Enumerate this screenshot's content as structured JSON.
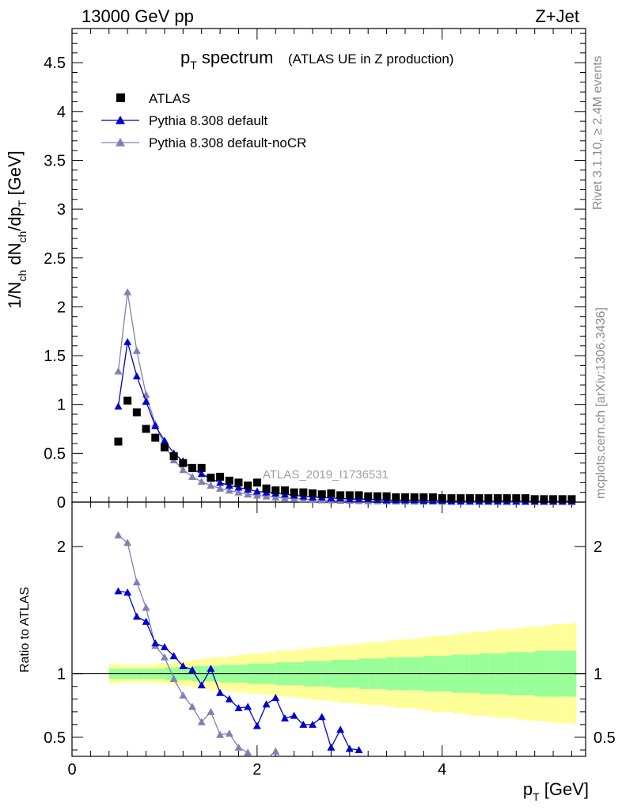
{
  "header": {
    "energy": "13000 GeV pp",
    "process": "Z+Jet"
  },
  "title": {
    "main": "p",
    "main_sub": "T",
    "main_rest": " spectrum",
    "note": "(ATLAS UE in Z production)"
  },
  "side_text": {
    "rivet": "Rivet 3.1.10, ≥ 2.4M events",
    "mcplots": "mcplots.cern.ch [arXiv:1306.3436]"
  },
  "watermark": "ATLAS_2019_I1736531",
  "y_upper_label": "1/N_ch dN_ch/dp_T [GeV]",
  "y_lower_label": "Ratio to ATLAS",
  "x_label": "p_T [GeV]",
  "colors": {
    "data": "#000000",
    "default": "#0000cc",
    "noCR": "#8080b3",
    "band_outer": "#ffff99",
    "band_inner": "#99ff99"
  },
  "chart_data": [
    {
      "type": "scatter",
      "panel": "main",
      "xlim": [
        0,
        5.55
      ],
      "ylim": [
        0,
        4.85
      ],
      "x_ticks": [
        "0",
        "2",
        "4"
      ],
      "y_ticks": [
        "0",
        "0.5",
        "1",
        "1.5",
        "2",
        "2.5",
        "3",
        "3.5",
        "4",
        "4.5"
      ],
      "x": [
        0.5,
        0.6,
        0.7,
        0.8,
        0.9,
        1.0,
        1.1,
        1.2,
        1.3,
        1.4,
        1.5,
        1.6,
        1.7,
        1.8,
        1.9,
        2.0,
        2.1,
        2.2,
        2.3,
        2.4,
        2.5,
        2.6,
        2.7,
        2.8,
        2.9,
        3.0,
        3.1,
        3.2,
        3.3,
        3.4,
        3.5,
        3.6,
        3.7,
        3.8,
        3.9,
        4.0,
        4.1,
        4.2,
        4.3,
        4.4,
        4.5,
        4.6,
        4.7,
        4.8,
        4.9,
        5.0,
        5.1,
        5.2,
        5.3,
        5.4
      ],
      "series": [
        {
          "name": "ATLAS",
          "marker": "square",
          "values": [
            0.62,
            1.04,
            0.92,
            0.75,
            0.66,
            0.56,
            0.47,
            0.4,
            0.35,
            0.35,
            0.25,
            0.26,
            0.22,
            0.2,
            0.17,
            0.2,
            0.14,
            0.12,
            0.12,
            0.1,
            0.1,
            0.09,
            0.08,
            0.09,
            0.07,
            0.07,
            0.07,
            0.06,
            0.06,
            0.06,
            0.05,
            0.05,
            0.05,
            0.05,
            0.05,
            0.04,
            0.04,
            0.04,
            0.04,
            0.04,
            0.04,
            0.04,
            0.04,
            0.04,
            0.04,
            0.03,
            0.03,
            0.03,
            0.03,
            0.03
          ]
        },
        {
          "name": "Pythia 8.308 default",
          "marker": "triangle",
          "values": [
            0.98,
            1.64,
            1.29,
            1.03,
            0.78,
            0.63,
            0.5,
            0.42,
            0.34,
            0.29,
            0.24,
            0.2,
            0.17,
            0.15,
            0.13,
            0.11,
            0.1,
            0.09,
            0.08,
            0.07,
            0.06,
            0.05,
            0.05,
            0.04,
            0.04,
            0.03,
            0.03,
            0.03,
            0.025,
            0.02,
            0.02,
            0.02,
            0.02,
            0.015,
            0.015,
            0.015,
            0.01,
            0.01,
            0.01,
            0.01,
            0.01,
            0.01,
            0.01,
            0.01,
            0.008,
            0.008,
            0.008,
            0.008,
            0.008,
            0.008
          ]
        },
        {
          "name": "Pythia 8.308 default-noCR",
          "marker": "triangle",
          "values": [
            1.34,
            2.15,
            1.55,
            1.1,
            0.8,
            0.58,
            0.43,
            0.33,
            0.26,
            0.21,
            0.17,
            0.14,
            0.12,
            0.1,
            0.08,
            0.07,
            0.06,
            0.05,
            0.04,
            0.035,
            0.03,
            0.025,
            0.02,
            0.02,
            0.015,
            0.015,
            0.012,
            0.01,
            0.01,
            0.01,
            0.008,
            0.008,
            0.007,
            0.006,
            0.006,
            0.005,
            0.005,
            0.005,
            0.004,
            0.004,
            0.004,
            0.004,
            0.003,
            0.003,
            0.003,
            0.003,
            0.003,
            0.003,
            0.003,
            0.003
          ]
        }
      ]
    },
    {
      "type": "line",
      "panel": "ratio",
      "xlim": [
        0,
        5.55
      ],
      "ylim": [
        0.35,
        2.35
      ],
      "x_ticks": [
        "0",
        "2",
        "4"
      ],
      "y_ticks": [
        "0.5",
        "1",
        "2"
      ],
      "x": [
        0.5,
        0.6,
        0.7,
        0.8,
        0.9,
        1.0,
        1.1,
        1.2,
        1.3,
        1.4,
        1.5,
        1.6,
        1.7,
        1.8,
        1.9,
        2.0,
        2.1,
        2.2,
        2.3,
        2.4,
        2.5,
        2.6,
        2.7,
        2.8,
        2.9,
        3.0,
        3.1
      ],
      "series": [
        {
          "name": "Pythia 8.308 default",
          "values": [
            1.65,
            1.64,
            1.45,
            1.41,
            1.24,
            1.21,
            1.14,
            1.06,
            1.03,
            0.91,
            1.04,
            0.85,
            0.8,
            0.73,
            0.74,
            0.59,
            0.76,
            0.81,
            0.65,
            0.67,
            0.6,
            0.6,
            0.66,
            0.42,
            0.56,
            0.41,
            0.4
          ]
        },
        {
          "name": "Pythia 8.308 default-noCR",
          "x": [
            0.5,
            0.6,
            0.7,
            0.8,
            0.9,
            1.0,
            1.1,
            1.2,
            1.3,
            1.4,
            1.5,
            1.6,
            1.7,
            1.8,
            1.9,
            2.0,
            2.1,
            2.2,
            2.3
          ],
          "values": [
            2.09,
            2.03,
            1.72,
            1.52,
            1.22,
            1.13,
            0.96,
            0.83,
            0.74,
            0.62,
            0.7,
            0.52,
            0.53,
            0.42,
            0.38,
            0.31,
            0.33,
            0.39,
            0.3
          ]
        }
      ],
      "band_x": [
        0.45,
        0.55,
        0.65,
        0.75,
        0.85,
        0.95,
        1.05,
        1.15,
        1.25,
        1.35,
        1.45,
        1.55,
        1.65,
        1.75,
        1.85,
        1.95,
        2.05,
        2.15,
        2.25,
        2.35,
        2.45,
        2.55,
        2.65,
        2.75,
        2.85,
        2.95,
        3.05,
        3.15,
        3.25,
        3.35,
        3.45,
        3.55,
        3.65,
        3.75,
        3.85,
        3.95,
        4.05,
        4.15,
        4.25,
        4.35,
        4.45,
        4.55,
        4.65,
        4.75,
        4.85,
        4.95,
        5.05,
        5.15,
        5.25,
        5.35,
        5.45
      ],
      "band_inner": [
        0.04,
        0.04,
        0.04,
        0.04,
        0.04,
        0.04,
        0.05,
        0.05,
        0.05,
        0.06,
        0.06,
        0.06,
        0.07,
        0.07,
        0.07,
        0.08,
        0.08,
        0.08,
        0.09,
        0.09,
        0.09,
        0.1,
        0.1,
        0.1,
        0.11,
        0.11,
        0.11,
        0.12,
        0.12,
        0.12,
        0.13,
        0.13,
        0.13,
        0.13,
        0.14,
        0.14,
        0.14,
        0.15,
        0.15,
        0.15,
        0.16,
        0.16,
        0.16,
        0.17,
        0.17,
        0.17,
        0.18,
        0.18,
        0.18,
        0.18,
        0.18
      ],
      "band_outer": [
        0.08,
        0.07,
        0.07,
        0.07,
        0.07,
        0.08,
        0.08,
        0.09,
        0.1,
        0.11,
        0.12,
        0.13,
        0.13,
        0.14,
        0.15,
        0.16,
        0.16,
        0.17,
        0.18,
        0.18,
        0.19,
        0.2,
        0.21,
        0.21,
        0.22,
        0.23,
        0.23,
        0.24,
        0.25,
        0.25,
        0.26,
        0.27,
        0.27,
        0.28,
        0.29,
        0.3,
        0.3,
        0.31,
        0.32,
        0.33,
        0.33,
        0.34,
        0.35,
        0.35,
        0.36,
        0.37,
        0.37,
        0.38,
        0.39,
        0.39,
        0.4
      ]
    }
  ]
}
